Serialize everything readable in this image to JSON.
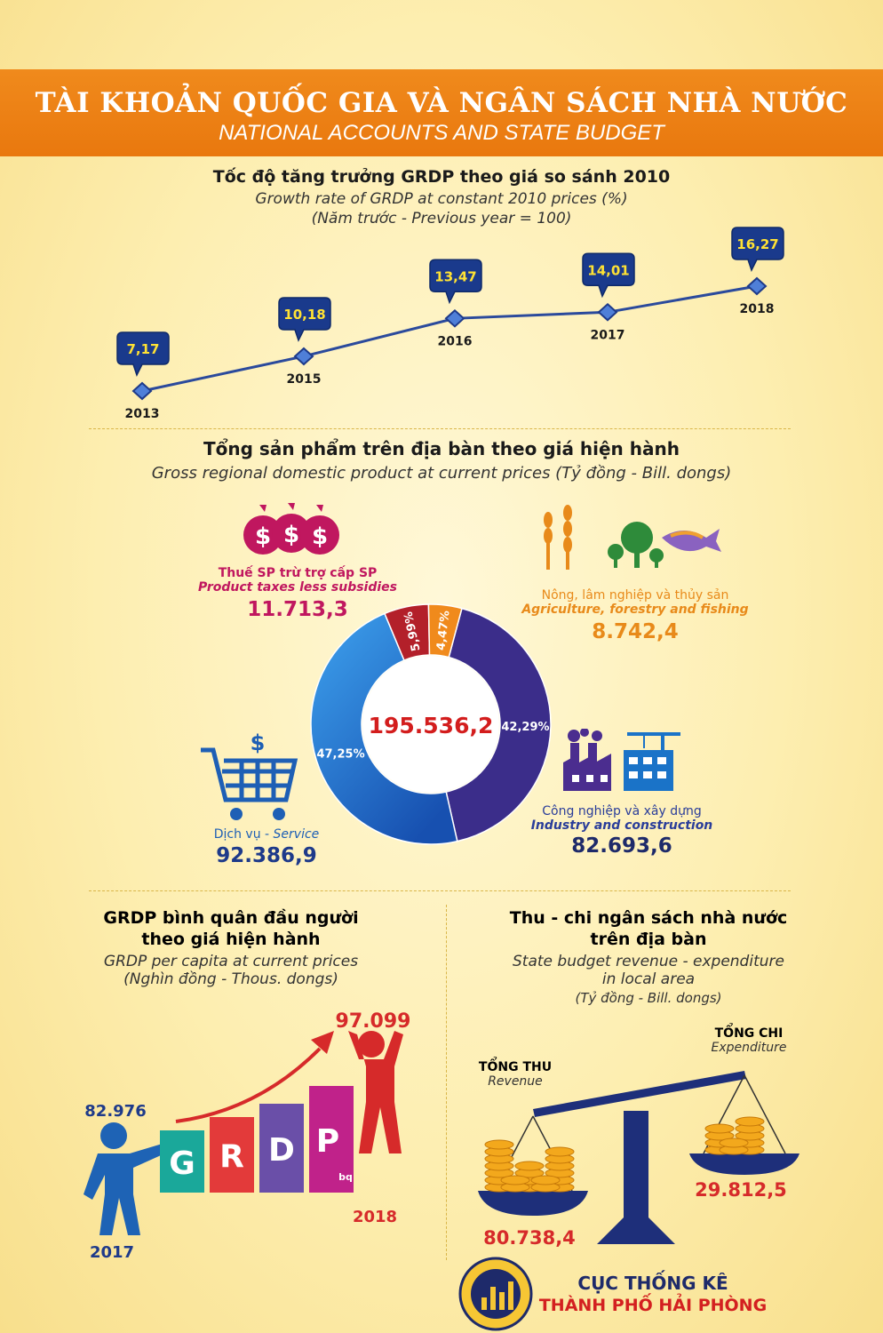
{
  "header": {
    "title_vi": "TÀI KHOẢN QUỐC GIA VÀ NGÂN SÁCH NHÀ NƯỚC",
    "title_en": "NATIONAL ACCOUNTS AND STATE BUDGET"
  },
  "growth": {
    "title_vi": "Tốc độ tăng trưởng GRDP theo giá so sánh 2010",
    "title_en": "Growth rate of GRDP at constant 2010 prices (%)",
    "note": "(Năm trước - Previous year = 100)"
  },
  "gdp": {
    "title_vi": "Tổng sản phẩm trên địa bàn theo giá hiện hành",
    "title_en": "Gross regional domestic product at current prices (Tỷ đồng - Bill. dongs)",
    "total": "195.536,2",
    "taxes": {
      "vi": "Thuế SP trừ trợ cấp SP",
      "en": "Product taxes less subsidies",
      "value": "11.713,3"
    },
    "agri": {
      "vi": "Nông, lâm nghiệp và thủy sản",
      "en": "Agriculture, forestry and fishing",
      "value": "8.742,4"
    },
    "service": {
      "vi": "Dịch vụ - ",
      "en": "Service",
      "value": "92.386,9"
    },
    "industry": {
      "vi": "Công nghiệp và xây dựng",
      "en": "Industry and construction",
      "value": "82.693,6"
    }
  },
  "per_capita": {
    "title_vi1": "GRDP bình quân đầu người",
    "title_vi2": "theo giá hiện hành",
    "title_en1": "GRDP per capita at current prices",
    "title_en2": "(Nghìn đồng - Thous. dongs)",
    "letters": [
      "G",
      "R",
      "D",
      "P"
    ],
    "subscript": "bq",
    "letter_colors": [
      "#1aa89a",
      "#e33a3a",
      "#6a4fa8",
      "#c0228a"
    ]
  },
  "budget": {
    "title_vi1": "Thu - chi ngân sách nhà nước",
    "title_vi2": "trên địa bàn",
    "title_en1": "State budget revenue - expenditure",
    "title_en2": "in local area",
    "title_unit": "(Tỷ đồng - Bill. dongs)",
    "revenue_vi": "TỔNG THU",
    "revenue_en": "Revenue",
    "expend_vi": "TỔNG CHI",
    "expend_en": "Expenditure"
  },
  "footer": {
    "org1": "CỤC THỐNG KÊ",
    "org2": "THÀNH PHỐ HẢI PHÒNG"
  },
  "chart_data": [
    {
      "type": "line",
      "title": "Tốc độ tăng trưởng GRDP theo giá so sánh 2010",
      "x": [
        "2013",
        "2015",
        "2016",
        "2017",
        "2018"
      ],
      "series": [
        {
          "values": [
            7.17,
            10.18,
            13.47,
            14.01,
            16.27
          ]
        }
      ],
      "labels": [
        "7,17",
        "10,18",
        "13,47",
        "14,01",
        "16,27"
      ]
    },
    {
      "type": "pie",
      "title": "Tổng sản phẩm trên địa bàn theo giá hiện hành",
      "categories": [
        "Công nghiệp và xây dựng",
        "Dịch vụ",
        "Thuế SP trừ trợ cấp SP",
        "Nông, lâm nghiệp và thủy sản"
      ],
      "values": [
        42.29,
        47.25,
        5.99,
        4.47
      ],
      "labels": [
        "42,29%",
        "47,25%",
        "5,99%",
        "4,47%"
      ],
      "colors": [
        "#3b2d8a",
        "#1f7fd6",
        "#b3202a",
        "#f08a1c"
      ]
    },
    {
      "type": "bar",
      "title": "GRDP bình quân đầu người theo giá hiện hành",
      "categories": [
        "2017",
        "2018"
      ],
      "values": [
        82976,
        97099
      ],
      "labels": [
        "82.976",
        "97.099"
      ]
    },
    {
      "type": "bar",
      "title": "Thu - chi ngân sách nhà nước trên địa bàn",
      "categories": [
        "TỔNG THU",
        "TỔNG CHI"
      ],
      "values": [
        80738.4,
        29812.5
      ],
      "labels": [
        "80.738,4",
        "29.812,5"
      ]
    }
  ]
}
